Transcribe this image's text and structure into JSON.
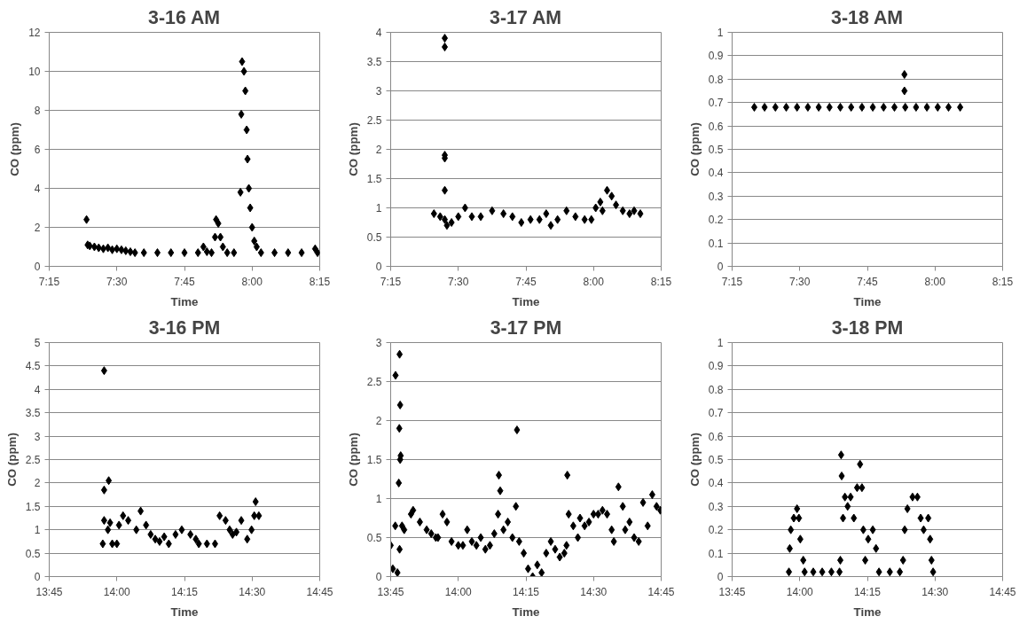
{
  "chart_data": [
    {
      "type": "scatter",
      "title": "3-16 AM",
      "xlabel": "Time",
      "ylabel": "CO (ppm)",
      "color": "#000000",
      "marker": "diamond",
      "grid": "y",
      "xlim": [
        7.25,
        8.25
      ],
      "xticks": [
        {
          "value": 7.25,
          "label": "7:15"
        },
        {
          "value": 7.5,
          "label": "7:30"
        },
        {
          "value": 7.75,
          "label": "7:45"
        },
        {
          "value": 8.0,
          "label": "8:00"
        },
        {
          "value": 8.25,
          "label": "8:15"
        }
      ],
      "ylim": [
        0,
        12
      ],
      "yticks": [
        0,
        2,
        4,
        6,
        8,
        10,
        12
      ],
      "x": [
        7.388,
        7.392,
        7.4,
        7.417,
        7.433,
        7.45,
        7.467,
        7.483,
        7.5,
        7.517,
        7.533,
        7.55,
        7.567,
        7.6,
        7.65,
        7.7,
        7.75,
        7.8,
        7.82,
        7.833,
        7.85,
        7.863,
        7.867,
        7.875,
        7.883,
        7.892,
        7.908,
        7.933,
        7.957,
        7.96,
        7.963,
        7.97,
        7.975,
        7.98,
        7.983,
        7.988,
        7.993,
        8.0,
        8.008,
        8.017,
        8.033,
        8.083,
        8.133,
        8.183,
        8.233,
        8.242
      ],
      "values": [
        2.4,
        1.1,
        1.05,
        1.0,
        0.95,
        0.9,
        0.95,
        0.85,
        0.9,
        0.85,
        0.8,
        0.75,
        0.7,
        0.7,
        0.7,
        0.7,
        0.7,
        0.7,
        1.0,
        0.75,
        0.7,
        1.5,
        2.4,
        2.2,
        1.5,
        1.0,
        0.7,
        0.7,
        3.8,
        7.8,
        10.5,
        10.0,
        9.0,
        7.0,
        5.5,
        4.0,
        3.0,
        2.0,
        1.3,
        1.0,
        0.7,
        0.7,
        0.7,
        0.7,
        0.9,
        0.7
      ]
    },
    {
      "type": "scatter",
      "title": "3-17 AM",
      "xlabel": "Time",
      "ylabel": "CO (ppm)",
      "color": "#000000",
      "marker": "diamond",
      "grid": "y",
      "xlim": [
        7.25,
        8.25
      ],
      "xticks": [
        {
          "value": 7.25,
          "label": "7:15"
        },
        {
          "value": 7.5,
          "label": "7:30"
        },
        {
          "value": 7.75,
          "label": "7:45"
        },
        {
          "value": 8.0,
          "label": "8:00"
        },
        {
          "value": 8.25,
          "label": "8:15"
        }
      ],
      "ylim": [
        0,
        4
      ],
      "yticks": [
        0,
        0.5,
        1,
        1.5,
        2,
        2.5,
        3,
        3.5,
        4
      ],
      "x": [
        7.41,
        7.433,
        7.45,
        7.45,
        7.45,
        7.45,
        7.45,
        7.45,
        7.458,
        7.475,
        7.5,
        7.525,
        7.55,
        7.583,
        7.625,
        7.667,
        7.7,
        7.733,
        7.767,
        7.8,
        7.825,
        7.842,
        7.867,
        7.9,
        7.933,
        7.967,
        7.992,
        8.008,
        8.025,
        8.033,
        8.05,
        8.067,
        8.083,
        8.108,
        8.133,
        8.15,
        8.173
      ],
      "values": [
        0.9,
        0.85,
        0.8,
        3.9,
        3.75,
        1.9,
        1.85,
        1.3,
        0.7,
        0.75,
        0.85,
        1.0,
        0.85,
        0.85,
        0.95,
        0.9,
        0.85,
        0.75,
        0.8,
        0.8,
        0.9,
        0.7,
        0.8,
        0.95,
        0.85,
        0.8,
        0.8,
        1.0,
        1.1,
        0.95,
        1.3,
        1.2,
        1.05,
        0.95,
        0.9,
        0.95,
        0.9
      ]
    },
    {
      "type": "scatter",
      "title": "3-18 AM",
      "xlabel": "Time",
      "ylabel": "CO (ppm)",
      "color": "#000000",
      "marker": "diamond",
      "grid": "y",
      "xlim": [
        7.25,
        8.25
      ],
      "xticks": [
        {
          "value": 7.25,
          "label": "7:15"
        },
        {
          "value": 7.5,
          "label": "7:30"
        },
        {
          "value": 7.75,
          "label": "7:45"
        },
        {
          "value": 8.0,
          "label": "8:00"
        },
        {
          "value": 8.25,
          "label": "8:15"
        }
      ],
      "ylim": [
        0,
        1
      ],
      "yticks": [
        0,
        0.1,
        0.2,
        0.3,
        0.4,
        0.5,
        0.6,
        0.7,
        0.8,
        0.9,
        1
      ],
      "x": [
        7.332,
        7.37,
        7.41,
        7.45,
        7.49,
        7.53,
        7.57,
        7.61,
        7.65,
        7.69,
        7.73,
        7.77,
        7.81,
        7.85,
        7.887,
        7.887,
        7.89,
        7.93,
        7.97,
        8.01,
        8.05,
        8.093
      ],
      "values": [
        0.68,
        0.68,
        0.68,
        0.68,
        0.68,
        0.68,
        0.68,
        0.68,
        0.68,
        0.68,
        0.68,
        0.68,
        0.68,
        0.68,
        0.75,
        0.82,
        0.68,
        0.68,
        0.68,
        0.68,
        0.68,
        0.68
      ]
    },
    {
      "type": "scatter",
      "title": "3-16 PM",
      "xlabel": "Time",
      "ylabel": "CO (ppm)",
      "color": "#000000",
      "marker": "diamond",
      "grid": "y",
      "xlim": [
        13.75,
        14.75
      ],
      "xticks": [
        {
          "value": 13.75,
          "label": "13:45"
        },
        {
          "value": 14.0,
          "label": "14:00"
        },
        {
          "value": 14.25,
          "label": "14:15"
        },
        {
          "value": 14.5,
          "label": "14:30"
        },
        {
          "value": 14.75,
          "label": "14:45"
        }
      ],
      "ylim": [
        0,
        5
      ],
      "yticks": [
        0,
        0.5,
        1,
        1.5,
        2,
        2.5,
        3,
        3.5,
        4,
        4.5,
        5
      ],
      "x": [
        13.948,
        13.953,
        13.953,
        13.953,
        13.967,
        13.97,
        13.975,
        13.983,
        14.0,
        14.008,
        14.023,
        14.042,
        14.072,
        14.088,
        14.108,
        14.125,
        14.142,
        14.158,
        14.175,
        14.192,
        14.217,
        14.24,
        14.272,
        14.292,
        14.303,
        14.333,
        14.363,
        14.38,
        14.402,
        14.417,
        14.428,
        14.442,
        14.46,
        14.482,
        14.498,
        14.508,
        14.513,
        14.525
      ],
      "values": [
        0.7,
        1.2,
        4.4,
        1.85,
        1.0,
        2.05,
        1.15,
        0.7,
        0.7,
        1.1,
        1.3,
        1.2,
        1.0,
        1.4,
        1.1,
        0.9,
        0.8,
        0.75,
        0.85,
        0.7,
        0.9,
        1.0,
        0.9,
        0.8,
        0.7,
        0.7,
        0.7,
        1.3,
        1.2,
        1.0,
        0.9,
        0.95,
        1.2,
        0.8,
        1.0,
        1.3,
        1.6,
        1.3
      ]
    },
    {
      "type": "scatter",
      "title": "3-17 PM",
      "xlabel": "Time",
      "ylabel": "CO (ppm)",
      "color": "#000000",
      "marker": "diamond",
      "grid": "y",
      "xlim": [
        13.75,
        14.75
      ],
      "xticks": [
        {
          "value": 13.75,
          "label": "13:45"
        },
        {
          "value": 14.0,
          "label": "14:00"
        },
        {
          "value": 14.25,
          "label": "14:15"
        },
        {
          "value": 14.5,
          "label": "14:30"
        },
        {
          "value": 14.75,
          "label": "14:45"
        }
      ],
      "ylim": [
        0,
        3
      ],
      "yticks": [
        0,
        0.5,
        1,
        1.5,
        2,
        2.5,
        3
      ],
      "x": [
        13.75,
        13.758,
        13.767,
        13.768,
        13.775,
        13.78,
        13.782,
        13.783,
        13.783,
        13.785,
        13.785,
        13.787,
        13.792,
        13.8,
        13.825,
        13.833,
        13.858,
        13.883,
        13.9,
        13.917,
        13.925,
        13.942,
        13.958,
        13.975,
        14.0,
        14.017,
        14.033,
        14.05,
        14.067,
        14.083,
        14.1,
        14.117,
        14.133,
        14.147,
        14.15,
        14.155,
        14.167,
        14.183,
        14.2,
        14.213,
        14.217,
        14.225,
        14.242,
        14.258,
        14.275,
        14.292,
        14.308,
        14.325,
        14.342,
        14.358,
        14.375,
        14.392,
        14.4,
        14.403,
        14.408,
        14.425,
        14.442,
        14.45,
        14.467,
        14.483,
        14.5,
        14.517,
        14.533,
        14.55,
        14.567,
        14.575,
        14.592,
        14.608,
        14.617,
        14.633,
        14.65,
        14.667,
        14.683,
        14.7,
        14.717,
        14.733,
        14.747
      ],
      "values": [
        0.4,
        0.1,
        0.65,
        2.58,
        0.05,
        1.2,
        1.9,
        0.35,
        2.85,
        2.2,
        1.5,
        1.55,
        0.65,
        0.6,
        0.8,
        0.85,
        0.7,
        0.6,
        0.55,
        0.5,
        0.5,
        0.8,
        0.7,
        0.45,
        0.4,
        0.4,
        0.6,
        0.45,
        0.4,
        0.5,
        0.35,
        0.4,
        0.55,
        0.8,
        1.3,
        1.1,
        0.6,
        0.7,
        0.5,
        0.9,
        1.88,
        0.45,
        0.3,
        0.1,
        0.0,
        0.15,
        0.05,
        0.3,
        0.45,
        0.35,
        0.25,
        0.3,
        0.4,
        1.3,
        0.8,
        0.65,
        0.5,
        0.75,
        0.65,
        0.7,
        0.8,
        0.8,
        0.85,
        0.8,
        0.6,
        0.45,
        1.15,
        0.9,
        0.6,
        0.7,
        0.5,
        0.45,
        0.95,
        0.65,
        1.05,
        0.9,
        0.85
      ]
    },
    {
      "type": "scatter",
      "title": "3-18 PM",
      "xlabel": "Time",
      "ylabel": "CO (ppm)",
      "color": "#000000",
      "marker": "diamond",
      "grid": "y",
      "xlim": [
        13.75,
        14.75
      ],
      "xticks": [
        {
          "value": 13.75,
          "label": "13:45"
        },
        {
          "value": 14.0,
          "label": "14:00"
        },
        {
          "value": 14.25,
          "label": "14:15"
        },
        {
          "value": 14.5,
          "label": "14:30"
        },
        {
          "value": 14.75,
          "label": "14:45"
        }
      ],
      "ylim": [
        0,
        1
      ],
      "yticks": [
        0,
        0.1,
        0.2,
        0.3,
        0.4,
        0.5,
        0.6,
        0.7,
        0.8,
        0.9,
        1
      ],
      "x": [
        13.96,
        13.963,
        13.967,
        13.978,
        13.99,
        13.997,
        14.002,
        14.013,
        14.018,
        14.05,
        14.083,
        14.117,
        14.147,
        14.15,
        14.153,
        14.155,
        14.16,
        14.167,
        14.177,
        14.188,
        14.2,
        14.212,
        14.223,
        14.23,
        14.235,
        14.242,
        14.253,
        14.27,
        14.282,
        14.293,
        14.333,
        14.37,
        14.382,
        14.388,
        14.398,
        14.417,
        14.435,
        14.447,
        14.458,
        14.475,
        14.482,
        14.487,
        14.493
      ],
      "values": [
        0.02,
        0.12,
        0.2,
        0.25,
        0.29,
        0.25,
        0.16,
        0.07,
        0.02,
        0.02,
        0.02,
        0.02,
        0.02,
        0.07,
        0.52,
        0.43,
        0.25,
        0.34,
        0.3,
        0.34,
        0.25,
        0.38,
        0.48,
        0.38,
        0.2,
        0.07,
        0.16,
        0.2,
        0.12,
        0.02,
        0.02,
        0.02,
        0.07,
        0.2,
        0.29,
        0.34,
        0.34,
        0.25,
        0.2,
        0.25,
        0.16,
        0.07,
        0.02
      ]
    }
  ]
}
